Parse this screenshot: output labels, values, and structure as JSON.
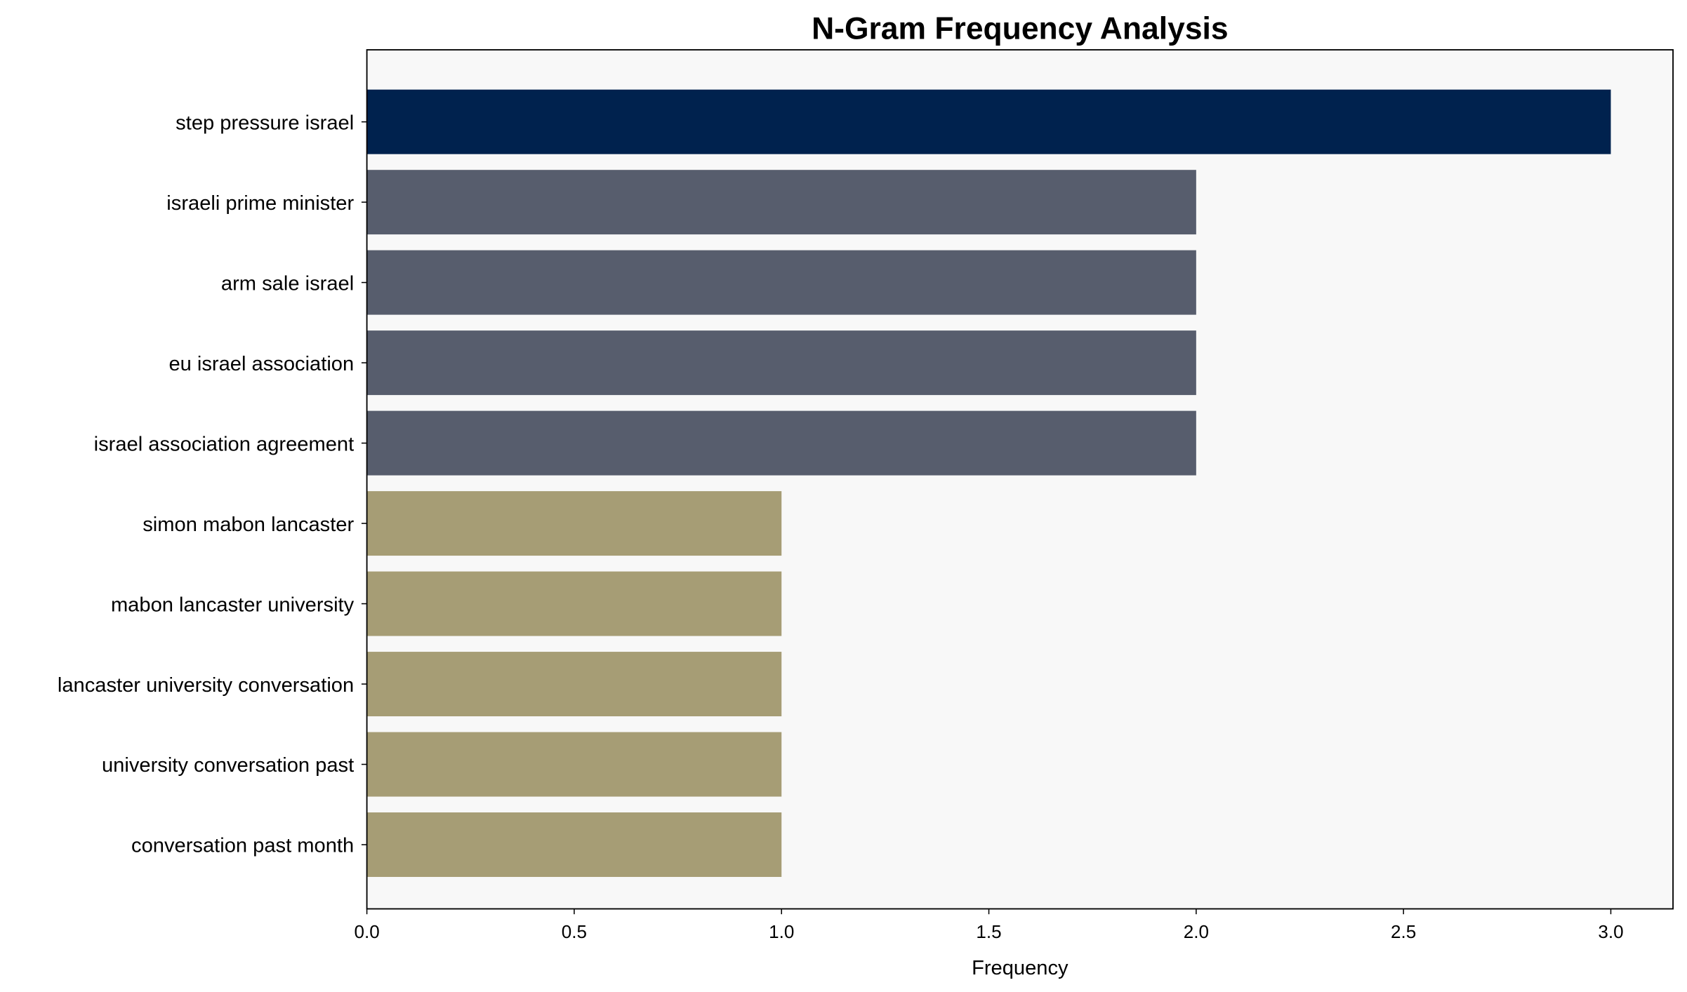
{
  "chart_data": {
    "type": "bar",
    "orientation": "horizontal",
    "title": "N-Gram Frequency Analysis",
    "xlabel": "Frequency",
    "ylabel": "",
    "categories": [
      "step pressure israel",
      "israeli prime minister",
      "arm sale israel",
      "eu israel association",
      "israel association agreement",
      "simon mabon lancaster",
      "mabon lancaster university",
      "lancaster university conversation",
      "university conversation past",
      "conversation past month"
    ],
    "values": [
      3,
      2,
      2,
      2,
      2,
      1,
      1,
      1,
      1,
      1
    ],
    "bar_colors": [
      "#00224e",
      "#575d6d",
      "#575d6d",
      "#575d6d",
      "#575d6d",
      "#a69d75",
      "#a69d75",
      "#a69d75",
      "#a69d75",
      "#a69d75"
    ],
    "xlim": [
      0,
      3.15
    ],
    "xticks": [
      "0.0",
      "0.5",
      "1.0",
      "1.5",
      "2.0",
      "2.5",
      "3.0"
    ],
    "grid": false,
    "plot_background": "#f8f8f8"
  }
}
